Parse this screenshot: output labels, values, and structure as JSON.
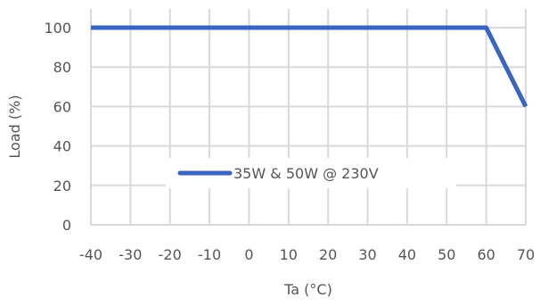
{
  "chart_data": {
    "type": "line",
    "xlabel": "Ta (°C)",
    "ylabel": "Load (%)",
    "xlim": [
      -40,
      70
    ],
    "ylim": [
      0,
      100
    ],
    "x_ticks": [
      "-40",
      "-30",
      "-20",
      "-10",
      "0",
      "10",
      "20",
      "30",
      "40",
      "50",
      "60",
      "70"
    ],
    "y_ticks": [
      "0",
      "20",
      "40",
      "60",
      "80",
      "100"
    ],
    "grid": true,
    "legend_position": "center",
    "series": [
      {
        "name": "35W & 50W @ 230V",
        "color": "#3a64c2",
        "x": [
          -40,
          60,
          70
        ],
        "y": [
          100,
          100,
          60
        ]
      }
    ]
  }
}
